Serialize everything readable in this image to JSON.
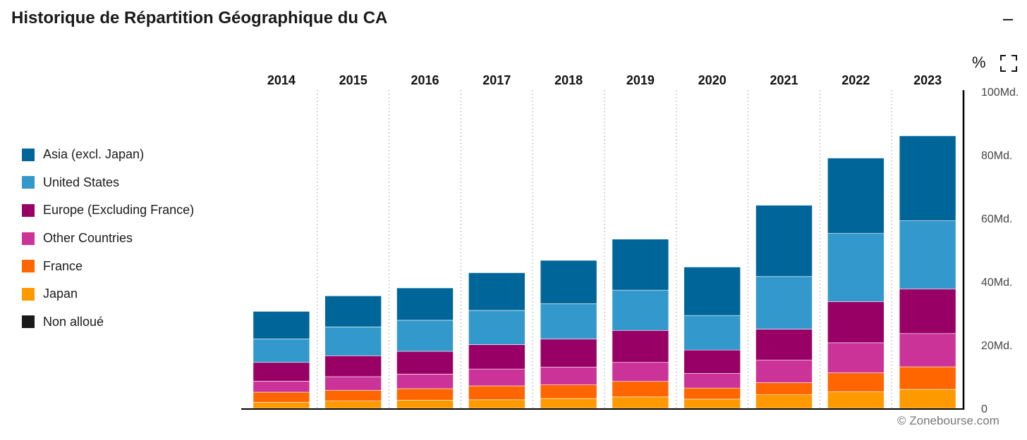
{
  "title": "Historique de Répartition Géographique du CA",
  "toolbar": {
    "percent_label": "%",
    "minimize_icon": "minus-icon",
    "fullscreen_icon": "fullscreen-icon"
  },
  "credit": "© Zonebourse.com",
  "legend": [
    {
      "label": "Asia (excl. Japan)",
      "color": "#006699"
    },
    {
      "label": "United States",
      "color": "#3399cc"
    },
    {
      "label": "Europe (Excluding France)",
      "color": "#990066"
    },
    {
      "label": "Other Countries",
      "color": "#cc3399"
    },
    {
      "label": "France",
      "color": "#ff6600"
    },
    {
      "label": "Japan",
      "color": "#ff9900"
    },
    {
      "label": "Non alloué",
      "color": "#1a1a1a"
    }
  ],
  "chart_data": {
    "type": "bar",
    "stacked": true,
    "categories": [
      "2014",
      "2015",
      "2016",
      "2017",
      "2018",
      "2019",
      "2020",
      "2021",
      "2022",
      "2023"
    ],
    "y_ticks": [
      "0",
      "20Md.",
      "40Md.",
      "60Md.",
      "80Md.",
      "100Md."
    ],
    "ylim": [
      0,
      100
    ],
    "y_axis_position": "right",
    "legend_position": "left",
    "grid": "vertical dotted separators",
    "series": [
      {
        "name": "Japan",
        "color": "#ff9900",
        "values": [
          1.9,
          2.3,
          2.6,
          2.7,
          3.1,
          3.6,
          2.9,
          4.3,
          5.2,
          6.0
        ]
      },
      {
        "name": "France",
        "color": "#ff6600",
        "values": [
          3.2,
          3.4,
          3.6,
          4.4,
          4.3,
          4.9,
          3.5,
          3.8,
          6.0,
          7.1
        ]
      },
      {
        "name": "Other Countries",
        "color": "#cc3399",
        "values": [
          3.5,
          4.3,
          4.6,
          5.3,
          5.6,
          6.0,
          4.6,
          7.1,
          9.5,
          10.5
        ]
      },
      {
        "name": "Europe (Excluding France)",
        "color": "#990066",
        "values": [
          5.9,
          6.6,
          7.2,
          7.7,
          8.9,
          10.1,
          7.4,
          9.8,
          13.0,
          14.1
        ]
      },
      {
        "name": "United States",
        "color": "#3399cc",
        "values": [
          7.4,
          9.1,
          9.8,
          10.8,
          11.1,
          12.7,
          10.9,
          16.6,
          21.5,
          21.5
        ]
      },
      {
        "name": "Asia (excl. Japan)",
        "color": "#006699",
        "values": [
          8.7,
          9.8,
          10.2,
          11.9,
          13.7,
          16.1,
          15.3,
          22.5,
          23.8,
          26.8
        ]
      },
      {
        "name": "Non alloué",
        "color": "#1a1a1a",
        "values": [
          0,
          0,
          0,
          0,
          0,
          0,
          0,
          0,
          0,
          0
        ]
      }
    ]
  }
}
